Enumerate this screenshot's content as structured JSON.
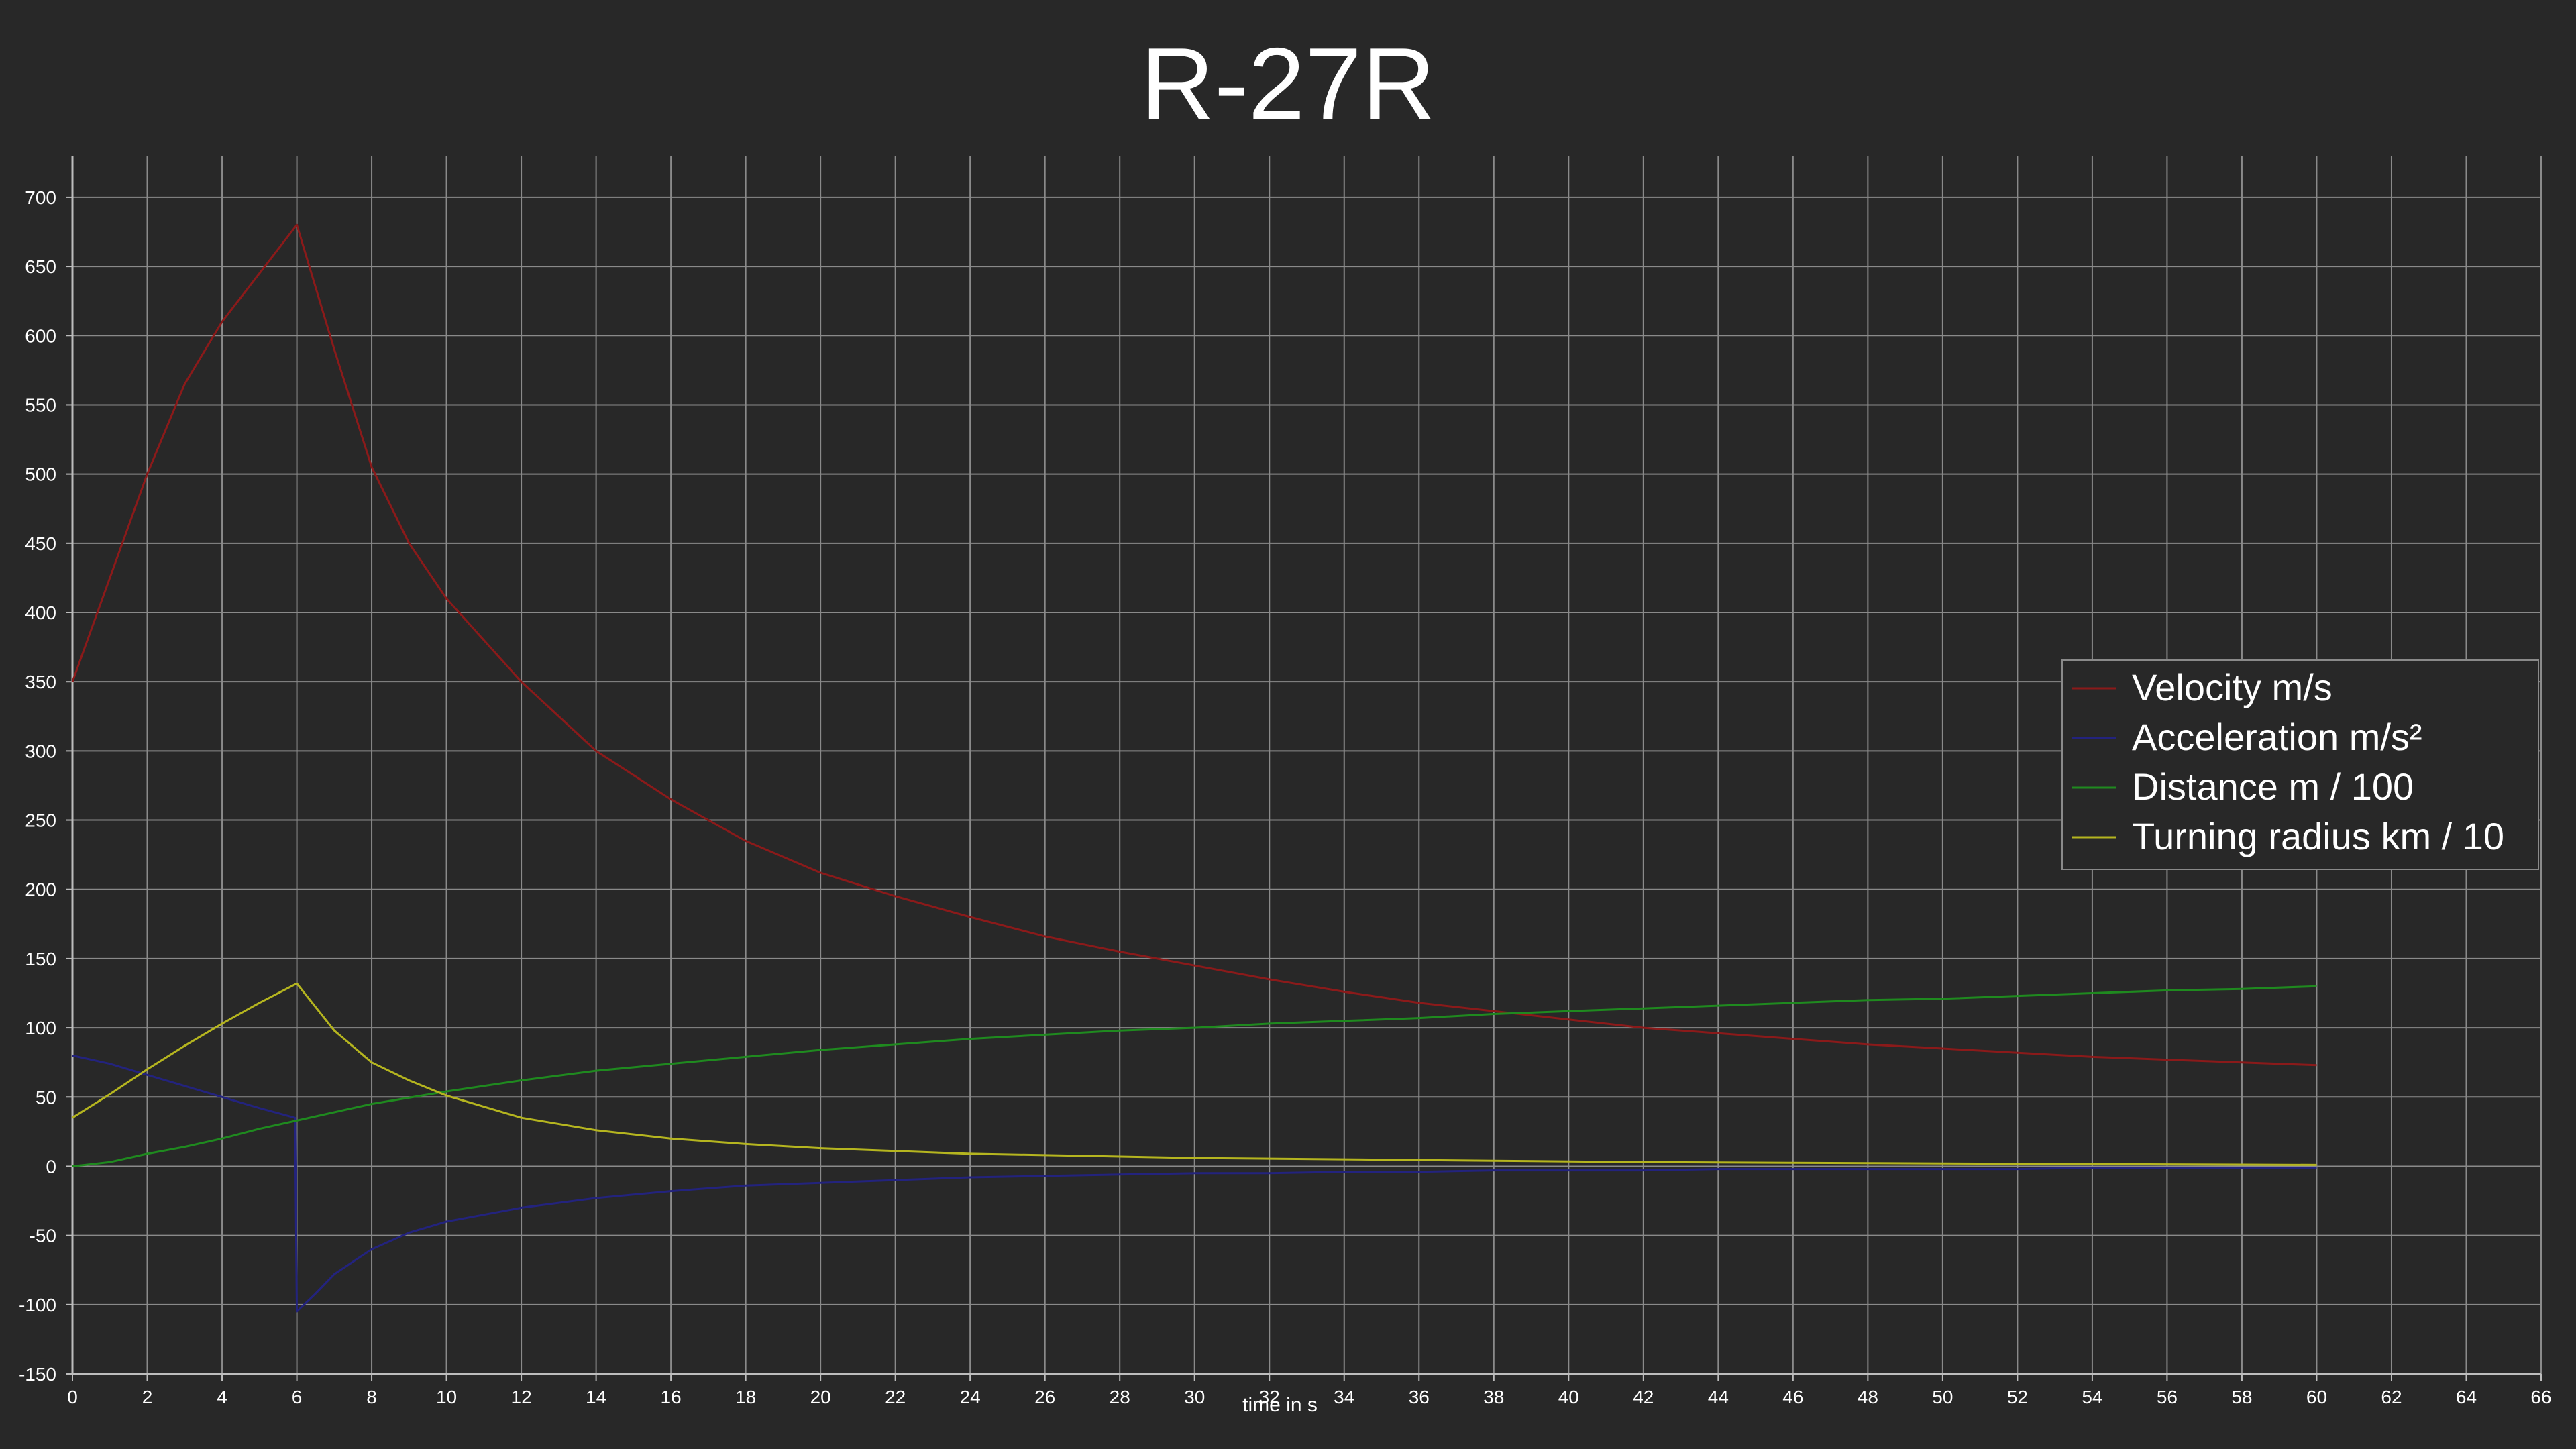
{
  "chart_data": {
    "type": "line",
    "title": "R-27R",
    "xlabel": "time in s",
    "ylabel": "",
    "xlim": [
      0,
      66
    ],
    "ylim": [
      -150,
      730
    ],
    "xticks": [
      0,
      2,
      4,
      6,
      8,
      10,
      12,
      14,
      16,
      18,
      20,
      22,
      24,
      26,
      28,
      30,
      32,
      34,
      36,
      38,
      40,
      42,
      44,
      46,
      48,
      50,
      52,
      54,
      56,
      58,
      60,
      62,
      64,
      66
    ],
    "yticks": [
      -150,
      -100,
      -50,
      0,
      50,
      100,
      150,
      200,
      250,
      300,
      350,
      400,
      450,
      500,
      550,
      600,
      650,
      700
    ],
    "grid": true,
    "legend_position": "right",
    "colors": {
      "background": "#282828",
      "grid": "#8a8a8a",
      "axis": "#bdbdbd",
      "text": "#ffffff",
      "legend_border": "#8a8a8a"
    },
    "series": [
      {
        "name": "Velocity m/s",
        "color": "#8b1a1a",
        "x": [
          0,
          1,
          2,
          3,
          4,
          5,
          6,
          7,
          8,
          9,
          10,
          12,
          14,
          16,
          18,
          20,
          22,
          24,
          26,
          28,
          30,
          32,
          34,
          36,
          38,
          40,
          42,
          44,
          46,
          48,
          50,
          52,
          54,
          56,
          58,
          60
        ],
        "y": [
          350,
          425,
          500,
          565,
          610,
          645,
          680,
          590,
          505,
          450,
          410,
          350,
          300,
          265,
          235,
          212,
          195,
          180,
          166,
          155,
          145,
          135,
          126,
          118,
          112,
          106,
          100,
          96,
          92,
          88,
          85,
          82,
          79,
          77,
          75,
          73
        ]
      },
      {
        "name": "Acceleration m/s²",
        "color": "#23237e",
        "x": [
          0,
          1,
          2,
          3,
          4,
          5,
          5.95,
          6,
          6.5,
          7,
          8,
          9,
          10,
          12,
          14,
          16,
          18,
          20,
          22,
          24,
          26,
          28,
          30,
          32,
          34,
          36,
          38,
          40,
          42,
          44,
          46,
          48,
          50,
          52,
          54,
          56,
          58,
          60
        ],
        "y": [
          80,
          74,
          66,
          58,
          50,
          42,
          35,
          -105,
          -92,
          -78,
          -60,
          -48,
          -40,
          -30,
          -23,
          -18,
          -14,
          -12,
          -10,
          -8,
          -7,
          -6,
          -5,
          -5,
          -4,
          -4,
          -3,
          -3,
          -3,
          -2,
          -2,
          -2,
          -2,
          -2,
          -1,
          -1,
          -1,
          -1
        ]
      },
      {
        "name": "Distance m / 100",
        "color": "#1f8a1f",
        "x": [
          0,
          1,
          2,
          3,
          4,
          5,
          6,
          7,
          8,
          10,
          12,
          14,
          16,
          18,
          20,
          22,
          24,
          26,
          28,
          30,
          32,
          34,
          36,
          38,
          40,
          42,
          44,
          46,
          48,
          50,
          52,
          54,
          56,
          58,
          60
        ],
        "y": [
          0,
          3,
          9,
          14,
          20,
          27,
          33,
          39,
          45,
          54,
          62,
          69,
          74,
          79,
          84,
          88,
          92,
          95,
          98,
          100,
          103,
          105,
          107,
          110,
          112,
          114,
          116,
          118,
          120,
          121,
          123,
          125,
          127,
          128,
          130
        ]
      },
      {
        "name": "Turning radius km / 10",
        "color": "#b5b51f",
        "x": [
          0,
          1,
          2,
          3,
          4,
          5,
          6,
          7,
          8,
          9,
          10,
          12,
          14,
          16,
          18,
          20,
          22,
          24,
          26,
          28,
          30,
          32,
          34,
          36,
          38,
          40,
          42,
          44,
          46,
          48,
          50,
          52,
          54,
          56,
          58,
          60
        ],
        "y": [
          35,
          52,
          70,
          87,
          103,
          118,
          132,
          98,
          75,
          62,
          51,
          35,
          26,
          20,
          16,
          13,
          11,
          9,
          8,
          7,
          6,
          5.5,
          5,
          4.5,
          4,
          3.5,
          3,
          2.8,
          2.5,
          2.3,
          2,
          1.8,
          1.6,
          1.4,
          1.2,
          1
        ]
      }
    ]
  }
}
